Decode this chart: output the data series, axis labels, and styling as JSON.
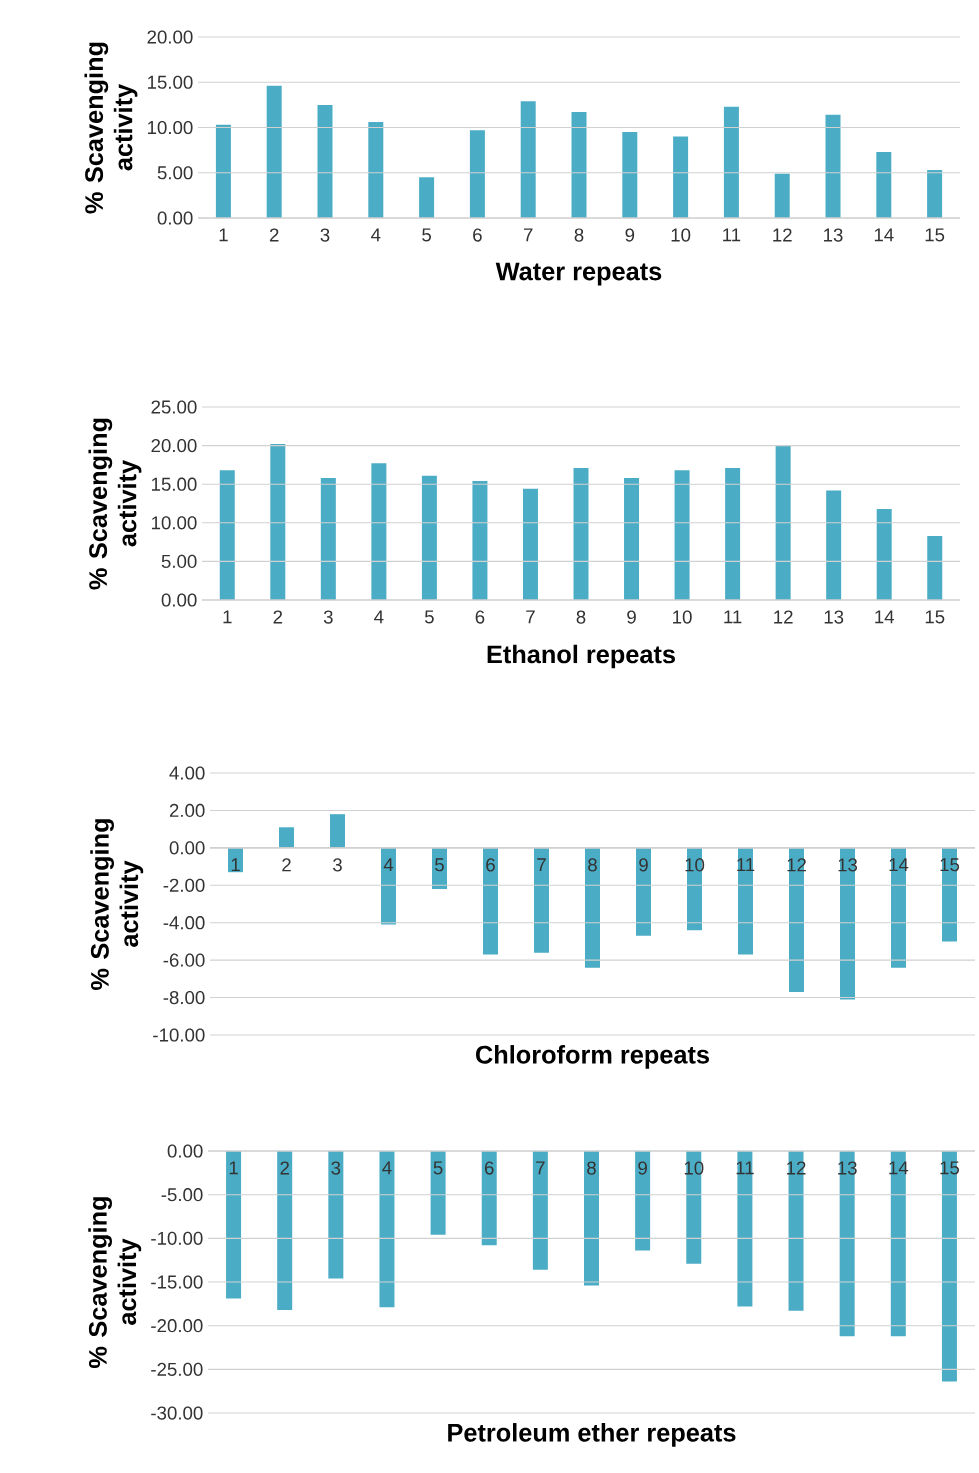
{
  "chart_data": [
    {
      "type": "bar",
      "categories": [
        "1",
        "2",
        "3",
        "4",
        "5",
        "6",
        "7",
        "8",
        "9",
        "10",
        "11",
        "12",
        "13",
        "14",
        "15"
      ],
      "values": [
        10.3,
        14.6,
        12.5,
        10.6,
        4.5,
        9.7,
        12.9,
        11.7,
        9.5,
        9.0,
        12.3,
        4.9,
        11.4,
        7.3,
        5.3
      ],
      "color": "#4bacc6",
      "xlabel": "Water repeats",
      "ylabel": "% Scavenging activity",
      "ylim": [
        0,
        20
      ],
      "yticks": [
        {
          "value": 0,
          "label": "0.00"
        },
        {
          "value": 5,
          "label": "5.00"
        },
        {
          "value": 10,
          "label": "10.00"
        },
        {
          "value": 15,
          "label": "15.00"
        },
        {
          "value": 20,
          "label": "20.00"
        }
      ],
      "grid": "y"
    },
    {
      "type": "bar",
      "categories": [
        "1",
        "2",
        "3",
        "4",
        "5",
        "6",
        "7",
        "8",
        "9",
        "10",
        "11",
        "12",
        "13",
        "14",
        "15"
      ],
      "values": [
        16.8,
        20.2,
        15.8,
        17.7,
        16.1,
        15.4,
        14.4,
        17.1,
        15.8,
        16.8,
        17.1,
        20.0,
        14.2,
        11.8,
        8.3
      ],
      "color": "#4bacc6",
      "xlabel": "Ethanol repeats",
      "ylabel": "% Scavenging activity",
      "ylim": [
        0,
        25
      ],
      "yticks": [
        {
          "value": 0,
          "label": "0.00"
        },
        {
          "value": 5,
          "label": "5.00"
        },
        {
          "value": 10,
          "label": "10.00"
        },
        {
          "value": 15,
          "label": "15.00"
        },
        {
          "value": 20,
          "label": "20.00"
        },
        {
          "value": 25,
          "label": "25.00"
        }
      ],
      "grid": "y"
    },
    {
      "type": "bar",
      "categories": [
        "1",
        "2",
        "3",
        "4",
        "5",
        "6",
        "7",
        "8",
        "9",
        "10",
        "11",
        "12",
        "13",
        "14",
        "15"
      ],
      "values": [
        -1.3,
        1.1,
        1.8,
        -4.1,
        -2.2,
        -5.7,
        -5.6,
        -6.4,
        -4.7,
        -4.4,
        -5.7,
        -7.7,
        -8.1,
        -6.4,
        -5.0
      ],
      "color": "#4bacc6",
      "xlabel": "Chloroform repeats",
      "ylabel": "% Scavenging activity",
      "ylim": [
        -10,
        4
      ],
      "yticks": [
        {
          "value": -10,
          "label": "-10.00"
        },
        {
          "value": -8,
          "label": "-8.00"
        },
        {
          "value": -6,
          "label": "-6.00"
        },
        {
          "value": -4,
          "label": "-4.00"
        },
        {
          "value": -2,
          "label": "-2.00"
        },
        {
          "value": 0,
          "label": "0.00"
        },
        {
          "value": 2,
          "label": "2.00"
        },
        {
          "value": 4,
          "label": "4.00"
        }
      ],
      "grid": "y"
    },
    {
      "type": "bar",
      "categories": [
        "1",
        "2",
        "3",
        "4",
        "5",
        "6",
        "7",
        "8",
        "9",
        "10",
        "11",
        "12",
        "13",
        "14",
        "15"
      ],
      "values": [
        -16.9,
        -18.2,
        -14.6,
        -17.9,
        -9.6,
        -10.8,
        -13.6,
        -15.4,
        -11.4,
        -12.9,
        -17.8,
        -18.3,
        -21.2,
        -21.2,
        -26.4
      ],
      "color": "#4bacc6",
      "xlabel": "Petroleum ether repeats",
      "ylabel": "% Scavenging activity",
      "ylim": [
        -30,
        0
      ],
      "yticks": [
        {
          "value": -30,
          "label": "-30.00"
        },
        {
          "value": -25,
          "label": "-25.00"
        },
        {
          "value": -20,
          "label": "-20.00"
        },
        {
          "value": -15,
          "label": "-15.00"
        },
        {
          "value": -10,
          "label": "-10.00"
        },
        {
          "value": -5,
          "label": "-5.00"
        },
        {
          "value": 0,
          "label": "0.00"
        }
      ],
      "grid": "y"
    }
  ]
}
